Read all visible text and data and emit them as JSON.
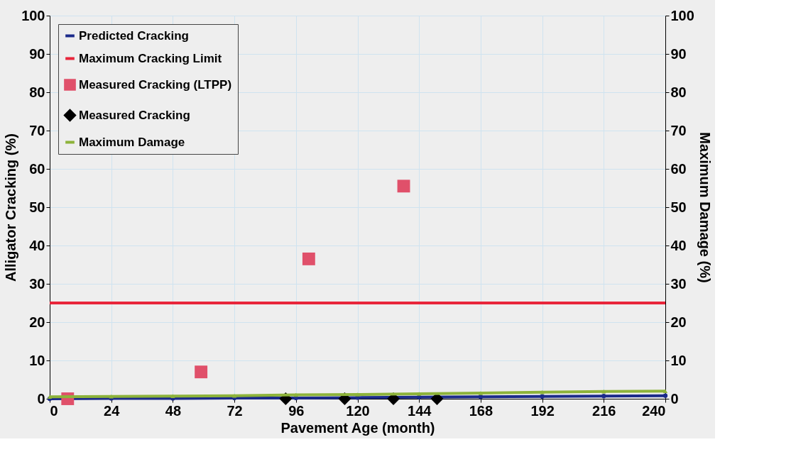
{
  "chart_data": {
    "type": "line",
    "xlabel": "Pavement Age (month)",
    "ylabel": "Alligator Cracking (%)",
    "y2label": "Maximum Damage (%)",
    "xlim": [
      0,
      240
    ],
    "xticks": [
      0,
      24,
      48,
      72,
      96,
      120,
      144,
      168,
      192,
      216,
      240
    ],
    "ylim": [
      0,
      100
    ],
    "yticks": [
      0,
      10,
      20,
      30,
      40,
      50,
      60,
      70,
      80,
      90,
      100
    ],
    "y2lim": [
      0,
      100
    ],
    "y2ticks": [
      0,
      10,
      20,
      30,
      40,
      50,
      60,
      70,
      80,
      90,
      100
    ],
    "grid": true,
    "legend": "top left",
    "series": [
      {
        "name": "Predicted Cracking",
        "marker": "circle",
        "color": "#1b2a8a",
        "x": [
          0,
          24,
          48,
          72,
          96,
          120,
          144,
          168,
          192,
          216,
          240
        ],
        "values": [
          0,
          0.1,
          0.1,
          0.2,
          0.2,
          0.3,
          0.4,
          0.5,
          0.6,
          0.7,
          0.8
        ]
      },
      {
        "name": "Maximum Cracking Limit",
        "marker": "none",
        "color": "#e8253a",
        "x": [
          0,
          240
        ],
        "values": [
          25,
          25
        ]
      },
      {
        "name": "Measured Cracking (LTPP)",
        "type": "scatter",
        "marker": "square",
        "color": "#e0506a",
        "x": [
          7,
          59,
          101,
          138
        ],
        "values": [
          0,
          7,
          36.5,
          55.5
        ]
      },
      {
        "name": "Measured Cracking",
        "type": "scatter",
        "marker": "diamond",
        "color": "#000000",
        "x": [
          92,
          115,
          134,
          151
        ],
        "values": [
          0,
          0,
          0,
          0
        ]
      },
      {
        "name": "Maximum Damage",
        "marker": "triangle",
        "axis": "y2",
        "color": "#8db33a",
        "x": [
          0,
          24,
          48,
          72,
          96,
          120,
          144,
          168,
          192,
          216,
          240
        ],
        "values": [
          0.5,
          0.6,
          0.7,
          0.8,
          1.0,
          1.1,
          1.3,
          1.5,
          1.7,
          1.9,
          2.0
        ]
      }
    ]
  }
}
